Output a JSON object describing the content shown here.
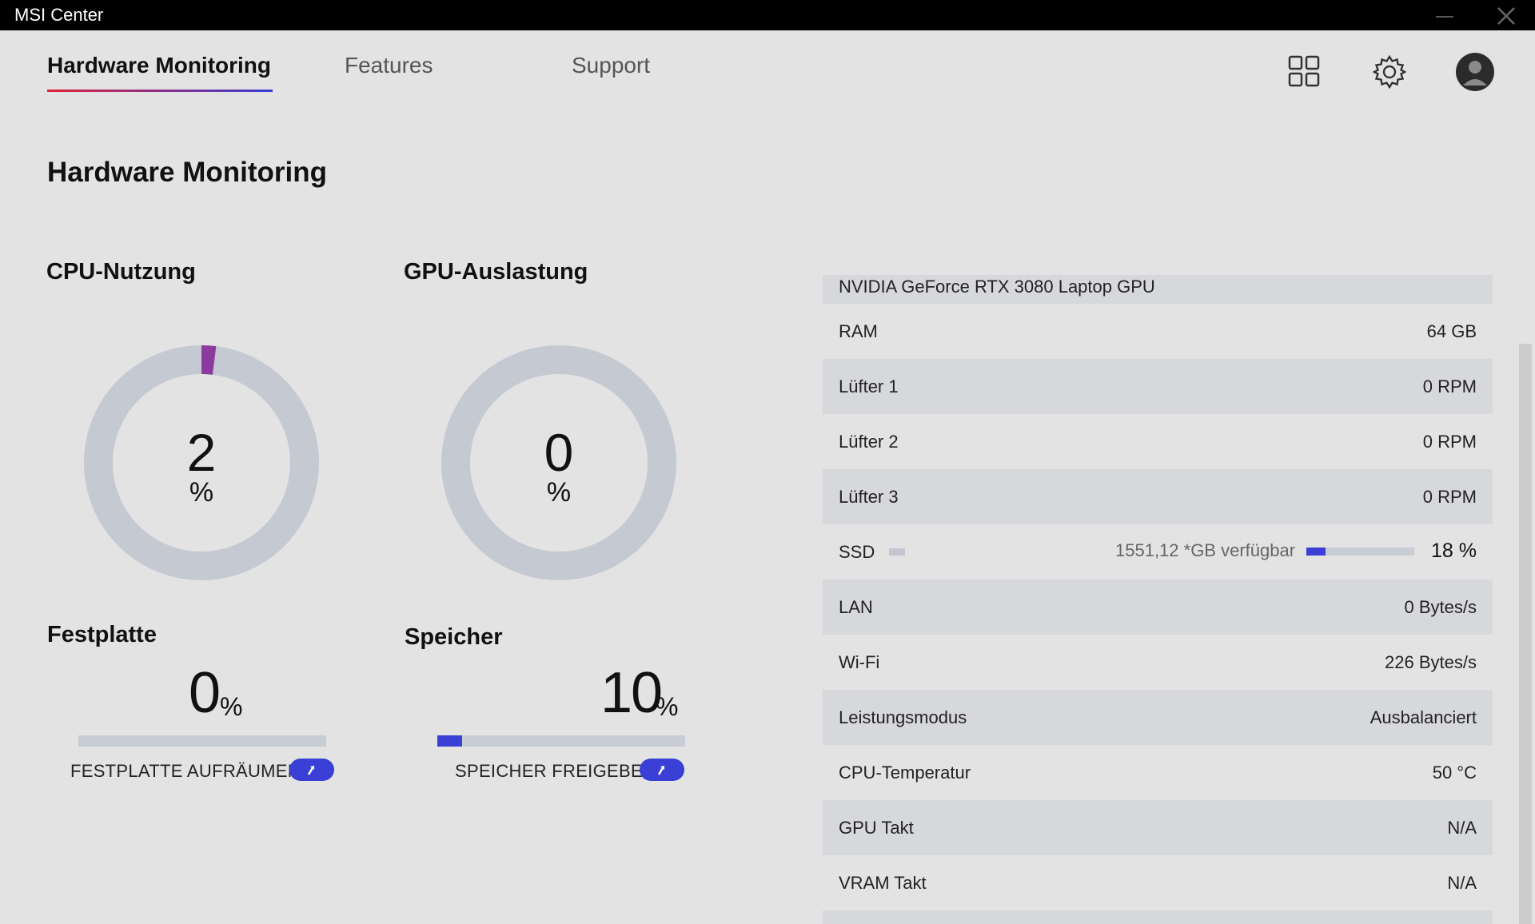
{
  "window": {
    "title": "MSI Center"
  },
  "nav": {
    "tabs": [
      {
        "label": "Hardware Monitoring",
        "active": true
      },
      {
        "label": "Features",
        "active": false
      },
      {
        "label": "Support",
        "active": false
      }
    ],
    "icons": [
      "grid-icon",
      "gear-icon",
      "user-avatar-icon"
    ]
  },
  "page": {
    "title": "Hardware Monitoring"
  },
  "cpu": {
    "title": "CPU-Nutzung",
    "value": "2",
    "unit": "%",
    "percent": 2
  },
  "gpu": {
    "title": "GPU-Auslastung",
    "value": "0",
    "unit": "%",
    "percent": 0
  },
  "disk": {
    "title": "Festplatte",
    "value": "0",
    "unit": "%",
    "percent": 0,
    "action_label": "FESTPLATTE AUFRÄUMEN"
  },
  "memory": {
    "title": "Speicher",
    "value": "10",
    "unit": "%",
    "percent": 10,
    "action_label": "SPEICHER FREIGEBEN"
  },
  "info": {
    "gpu_name": "NVIDIA GeForce RTX 3080 Laptop GPU",
    "rows": [
      {
        "label": "RAM",
        "value": "64 GB"
      },
      {
        "label": "Lüfter 1",
        "value": "0 RPM"
      },
      {
        "label": "Lüfter 2",
        "value": "0 RPM"
      },
      {
        "label": "Lüfter 3",
        "value": "0 RPM"
      }
    ],
    "ssd": {
      "label": "SSD",
      "available": "1551,12 *GB verfügbar",
      "percent_label": "18 %",
      "percent": 18
    },
    "rows2": [
      {
        "label": "LAN",
        "value": "0 Bytes/s"
      },
      {
        "label": "Wi-Fi",
        "value": "226 Bytes/s"
      },
      {
        "label": "Leistungsmodus",
        "value": "Ausbalanciert"
      },
      {
        "label": "CPU-Temperatur",
        "value": "50 °C"
      },
      {
        "label": "GPU Takt",
        "value": "N/A"
      },
      {
        "label": "VRAM Takt",
        "value": "N/A"
      }
    ]
  },
  "colors": {
    "accent": "#3a3fd6",
    "cpu_arc": "#8b3a9e",
    "track": "#c5c9d2",
    "tab_underline_start": "#e0233b",
    "tab_underline_end": "#3a3fd6"
  }
}
